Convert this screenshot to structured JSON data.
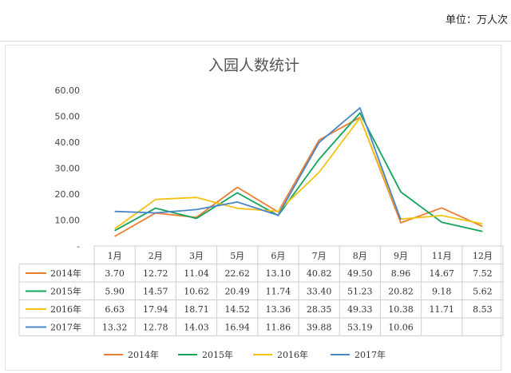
{
  "header": {
    "unit_label": "单位：万人次"
  },
  "chart_data": {
    "type": "line",
    "title": "入园人数统计",
    "categories": [
      "1月",
      "2月",
      "3月",
      "5月",
      "6月",
      "7月",
      "8月",
      "9月",
      "11月",
      "12月"
    ],
    "ylim": [
      0,
      60
    ],
    "yticks": [
      "-",
      "10.00",
      "20.00",
      "30.00",
      "40.00",
      "50.00",
      "60.00"
    ],
    "grid": false,
    "legend": "bottom",
    "series": [
      {
        "name": "2014年",
        "color": "#ed7d31",
        "values": [
          3.7,
          12.72,
          11.04,
          22.62,
          13.1,
          40.82,
          49.5,
          8.96,
          14.67,
          7.52
        ],
        "labels": [
          "3.70",
          "12.72",
          "11.04",
          "22.62",
          "13.10",
          "40.82",
          "49.50",
          "8.96",
          "14.67",
          "7.52"
        ]
      },
      {
        "name": "2015年",
        "color": "#13a35a",
        "values": [
          5.9,
          14.57,
          10.62,
          20.49,
          11.74,
          33.4,
          51.23,
          20.82,
          9.18,
          5.62
        ],
        "labels": [
          "5.90",
          "14.57",
          "10.62",
          "20.49",
          "11.74",
          "33.40",
          "51.23",
          "20.82",
          "9.18",
          "5.62"
        ]
      },
      {
        "name": "2016年",
        "color": "#f2c314",
        "values": [
          6.63,
          17.94,
          18.71,
          14.52,
          13.36,
          28.35,
          49.33,
          10.38,
          11.71,
          8.53
        ],
        "labels": [
          "6.63",
          "17.94",
          "18.71",
          "14.52",
          "13.36",
          "28.35",
          "49.33",
          "10.38",
          "11.71",
          "8.53"
        ]
      },
      {
        "name": "2017年",
        "color": "#4a86c8",
        "values": [
          13.32,
          12.78,
          14.03,
          16.94,
          11.86,
          39.88,
          53.19,
          10.06,
          null,
          null
        ],
        "labels": [
          "13.32",
          "12.78",
          "14.03",
          "16.94",
          "11.86",
          "39.88",
          "53.19",
          "10.06",
          "",
          ""
        ]
      }
    ]
  }
}
